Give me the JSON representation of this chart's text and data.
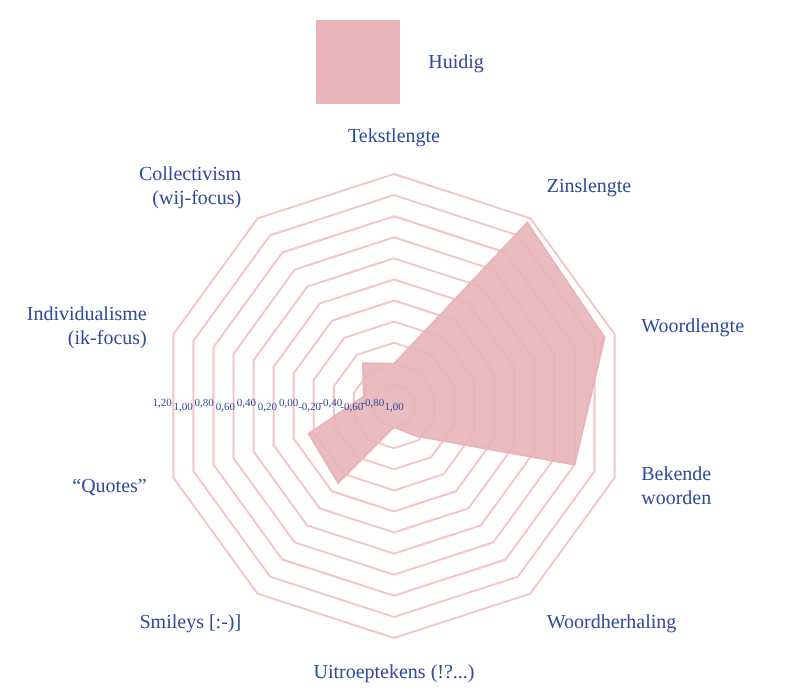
{
  "chart_data": {
    "type": "radar",
    "categories": [
      "Tekstlengte",
      "Zinslengte",
      "Woordlengte",
      "Bekende\nwoorden",
      "Woordherhaling",
      "Uitroeptekens (!?...)",
      "Smileys [:-)]",
      "“Quotes”",
      "Individualisme\n(ik-focus)",
      "Collectivism\n(wij-focus)"
    ],
    "series": [
      {
        "name": "Huidig",
        "color": "#e8b4b8",
        "values": [
          -0.6,
          1.15,
          1.1,
          0.8,
          -0.65,
          -0.8,
          -0.1,
          -0.15,
          -0.7,
          -0.5
        ]
      }
    ],
    "ylim": [
      -1,
      1.2
    ],
    "yticks": [
      {
        "value": -1,
        "label": "1,00"
      },
      {
        "value": -0.8,
        "label": "-0,80"
      },
      {
        "value": -0.6,
        "label": "-0,60"
      },
      {
        "value": -0.4,
        "label": "-0,40"
      },
      {
        "value": -0.2,
        "label": "-0,20"
      },
      {
        "value": 0,
        "label": "0,00"
      },
      {
        "value": 0.2,
        "label": "0,20"
      },
      {
        "value": 0.4,
        "label": "0,40"
      },
      {
        "value": 0.6,
        "label": "0,60"
      },
      {
        "value": 0.8,
        "label": "0,80"
      },
      {
        "value": 1,
        "label": "1,00"
      },
      {
        "value": 1.2,
        "label": "1,20"
      }
    ],
    "grid": true,
    "legend": "top"
  }
}
